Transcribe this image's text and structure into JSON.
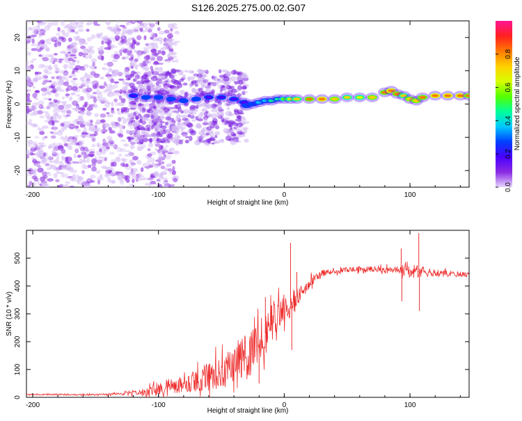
{
  "title": "S126.2025.275.00.02.G07",
  "chart_data": [
    {
      "type": "heatmap",
      "title": "S126.2025.275.00.02.G07",
      "xlabel": "Height of straight line (km)",
      "ylabel": "Frequency (Hz)",
      "xlim": [
        -205,
        147
      ],
      "ylim": [
        -25,
        25
      ],
      "xticks": [
        -200,
        -100,
        0,
        100
      ],
      "yticks": [
        -20,
        -10,
        0,
        10,
        20
      ],
      "colorbar": {
        "label": "Normalized spectral amplitude",
        "range": [
          0,
          1
        ],
        "ticks": [
          0.0,
          0.2,
          0.4,
          0.6,
          0.8
        ],
        "tick_labels": [
          "0.0",
          "0.2",
          "0.4",
          "0.6",
          "0.8"
        ]
      },
      "colormap": [
        "#e6d6ff",
        "#8a2be2",
        "#4b00ff",
        "#0040ff",
        "#00c8ff",
        "#00ff9a",
        "#55ff00",
        "#d8ff00",
        "#ffd000",
        "#ff7a00",
        "#ff2020",
        "#ff1493"
      ],
      "ridge": [
        {
          "x": -120,
          "y": 2.5,
          "amp": 0.22
        },
        {
          "x": -110,
          "y": 2.0,
          "amp": 0.24
        },
        {
          "x": -100,
          "y": 2.0,
          "amp": 0.26
        },
        {
          "x": -90,
          "y": 1.5,
          "amp": 0.25
        },
        {
          "x": -80,
          "y": 1.0,
          "amp": 0.24
        },
        {
          "x": -70,
          "y": 1.5,
          "amp": 0.23
        },
        {
          "x": -60,
          "y": 2.0,
          "amp": 0.22
        },
        {
          "x": -50,
          "y": 2.0,
          "amp": 0.21
        },
        {
          "x": -40,
          "y": 1.5,
          "amp": 0.2
        },
        {
          "x": -32,
          "y": 0.5,
          "amp": 0.22
        },
        {
          "x": -30,
          "y": -0.5,
          "amp": 0.24
        },
        {
          "x": -25,
          "y": 0.0,
          "amp": 0.28
        },
        {
          "x": -20,
          "y": 0.5,
          "amp": 0.32
        },
        {
          "x": -15,
          "y": 1.0,
          "amp": 0.36
        },
        {
          "x": -10,
          "y": 1.0,
          "amp": 0.42
        },
        {
          "x": -5,
          "y": 1.5,
          "amp": 0.48
        },
        {
          "x": 0,
          "y": 1.5,
          "amp": 0.55
        },
        {
          "x": 5,
          "y": 1.5,
          "amp": 0.62
        },
        {
          "x": 10,
          "y": 1.5,
          "amp": 0.7
        },
        {
          "x": 20,
          "y": 1.5,
          "amp": 0.78
        },
        {
          "x": 30,
          "y": 1.5,
          "amp": 0.8
        },
        {
          "x": 40,
          "y": 1.5,
          "amp": 0.72
        },
        {
          "x": 50,
          "y": 2.0,
          "amp": 0.7
        },
        {
          "x": 60,
          "y": 2.0,
          "amp": 0.68
        },
        {
          "x": 70,
          "y": 2.0,
          "amp": 0.72
        },
        {
          "x": 80,
          "y": 3.5,
          "amp": 0.78
        },
        {
          "x": 85,
          "y": 4.0,
          "amp": 0.8
        },
        {
          "x": 90,
          "y": 3.0,
          "amp": 0.78
        },
        {
          "x": 95,
          "y": 2.5,
          "amp": 0.7
        },
        {
          "x": 100,
          "y": 1.5,
          "amp": 0.75
        },
        {
          "x": 105,
          "y": 1.0,
          "amp": 0.72
        },
        {
          "x": 110,
          "y": 2.0,
          "amp": 0.78
        },
        {
          "x": 120,
          "y": 2.5,
          "amp": 0.82
        },
        {
          "x": 130,
          "y": 2.5,
          "amp": 0.82
        },
        {
          "x": 140,
          "y": 2.5,
          "amp": 0.8
        },
        {
          "x": 147,
          "y": 2.5,
          "amp": 0.78
        }
      ]
    },
    {
      "type": "line",
      "xlabel": "Height of straight line (km)",
      "ylabel": "SNR (10 * v/v)",
      "xlim": [
        -205,
        147
      ],
      "ylim": [
        0,
        600
      ],
      "xticks": [
        -200,
        -100,
        0,
        100
      ],
      "yticks": [
        0,
        100,
        200,
        300,
        400,
        500
      ],
      "series": [
        {
          "name": "SNR",
          "color": "#ee2c2c",
          "x": [
            -205,
            -180,
            -150,
            -130,
            -120,
            -110,
            -100,
            -90,
            -80,
            -70,
            -60,
            -50,
            -40,
            -30,
            -20,
            -15,
            -10,
            -5,
            0,
            5,
            8,
            10,
            15,
            20,
            25,
            30,
            40,
            50,
            60,
            70,
            80,
            90,
            95,
            100,
            105,
            108,
            110,
            120,
            130,
            140,
            147
          ],
          "y": [
            10,
            10,
            10,
            12,
            15,
            20,
            30,
            40,
            50,
            60,
            75,
            90,
            120,
            150,
            190,
            230,
            260,
            300,
            320,
            340,
            350,
            360,
            380,
            410,
            430,
            445,
            455,
            458,
            460,
            460,
            458,
            455,
            455,
            452,
            450,
            450,
            450,
            448,
            445,
            443,
            440
          ],
          "noise": [
            2,
            3,
            3,
            5,
            8,
            15,
            25,
            30,
            35,
            40,
            50,
            60,
            70,
            80,
            85,
            80,
            70,
            60,
            55,
            50,
            45,
            40,
            30,
            20,
            15,
            12,
            10,
            10,
            10,
            10,
            12,
            15,
            20,
            25,
            25,
            25,
            20,
            12,
            10,
            10,
            10
          ]
        }
      ],
      "spikes": [
        {
          "x": -20,
          "y": 50
        },
        {
          "x": -15,
          "y": 360
        },
        {
          "x": -10,
          "y": 330
        },
        {
          "x": 5,
          "y": 555
        },
        {
          "x": 6,
          "y": 170
        },
        {
          "x": 10,
          "y": 450
        },
        {
          "x": 93,
          "y": 535
        },
        {
          "x": 93.5,
          "y": 345
        },
        {
          "x": 107,
          "y": 590
        },
        {
          "x": 107.5,
          "y": 310
        }
      ]
    }
  ]
}
